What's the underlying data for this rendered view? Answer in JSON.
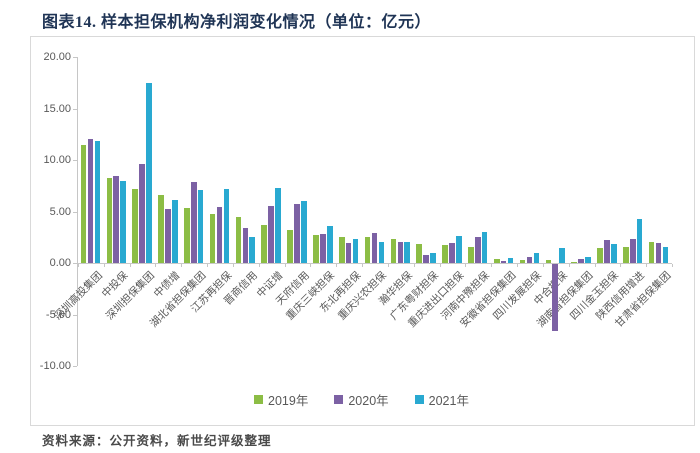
{
  "title": "图表14. 样本担保机构净利润变化情况（单位：亿元）",
  "source_note": "资料来源：公开资料，新世纪评级整理",
  "colors": {
    "series_2019": "#8cbd45",
    "series_2020": "#7c61a4",
    "series_2021": "#29a9d1",
    "axis": "#c6c6c6",
    "text": "#595959",
    "title_text": "#1f3455"
  },
  "chart_data": {
    "type": "bar",
    "title": "样本担保机构净利润变化情况",
    "unit": "亿元",
    "grid": "off",
    "legend_position": "bottom",
    "ylim": [
      -10,
      20
    ],
    "yticks": [
      {
        "value": 20,
        "label": "20.00"
      },
      {
        "value": 15,
        "label": "15.00"
      },
      {
        "value": 10,
        "label": "10.00"
      },
      {
        "value": 5,
        "label": "5.00"
      },
      {
        "value": 0,
        "label": "0.00"
      },
      {
        "value": -5,
        "label": "-5.00"
      },
      {
        "value": -10,
        "label": "-10.00"
      }
    ],
    "categories": [
      "深圳高投集团",
      "中投保",
      "深圳担保集团",
      "中债增",
      "湖北省担保集团",
      "江苏再担保",
      "晋商信用",
      "中证增",
      "天府信用",
      "重庆三峡担保",
      "东北再担保",
      "重庆兴农担保",
      "瀚华担保",
      "广东粤财担保",
      "重庆进出口担保",
      "河南中豫担保",
      "安徽省担保集团",
      "四川发展担保",
      "中合担保",
      "湖南省担保集团",
      "四川金玉担保",
      "陕西信用增进",
      "甘肃省担保集团"
    ],
    "series": [
      {
        "name": "2019年",
        "color": "#8cbd45",
        "values": [
          11.5,
          8.3,
          7.2,
          6.6,
          5.3,
          4.8,
          4.5,
          3.7,
          3.2,
          2.7,
          2.5,
          2.5,
          2.3,
          1.8,
          1.7,
          1.6,
          0.4,
          0.3,
          0.3,
          0.1,
          1.5,
          1.6,
          2.0
        ]
      },
      {
        "name": "2020年",
        "color": "#7c61a4",
        "values": [
          12.0,
          8.4,
          9.6,
          5.2,
          7.9,
          5.4,
          3.4,
          5.5,
          5.7,
          2.8,
          1.9,
          2.9,
          2.0,
          0.8,
          1.9,
          2.5,
          0.2,
          0.6,
          -6.5,
          0.4,
          2.2,
          2.3,
          1.9
        ]
      },
      {
        "name": "2021年",
        "color": "#29a9d1",
        "values": [
          11.8,
          8.0,
          17.5,
          6.1,
          7.1,
          7.2,
          2.5,
          7.3,
          6.0,
          3.6,
          2.3,
          2.0,
          2.0,
          1.0,
          2.6,
          3.0,
          0.5,
          1.0,
          1.5,
          0.6,
          1.8,
          4.3,
          1.6
        ]
      }
    ]
  }
}
